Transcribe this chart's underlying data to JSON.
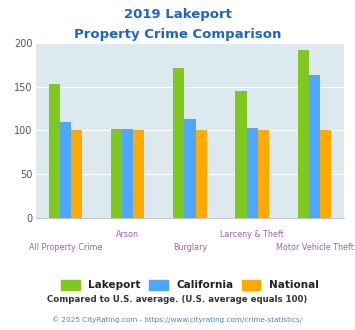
{
  "title_line1": "2019 Lakeport",
  "title_line2": "Property Crime Comparison",
  "categories": [
    "All Property Crime",
    "Arson",
    "Burglary",
    "Larceny & Theft",
    "Motor Vehicle Theft"
  ],
  "series": {
    "Lakeport": [
      153,
      101,
      171,
      145,
      192
    ],
    "California": [
      110,
      101,
      113,
      103,
      163
    ],
    "National": [
      100,
      100,
      100,
      100,
      100
    ]
  },
  "colors": {
    "Lakeport": "#7ec820",
    "California": "#4da6ff",
    "National": "#ffaa00"
  },
  "ylim": [
    0,
    200
  ],
  "yticks": [
    0,
    50,
    100,
    150,
    200
  ],
  "background_color": "#dce9ef",
  "title_color": "#1a66cc",
  "xlabel_color_even": "#9966aa",
  "xlabel_color_odd": "#9966aa",
  "footnote1": "Compared to U.S. average. (U.S. average equals 100)",
  "footnote2": "© 2025 CityRating.com - https://www.cityrating.com/crime-statistics/",
  "footnote1_color": "#333333",
  "footnote2_color": "#4488cc"
}
